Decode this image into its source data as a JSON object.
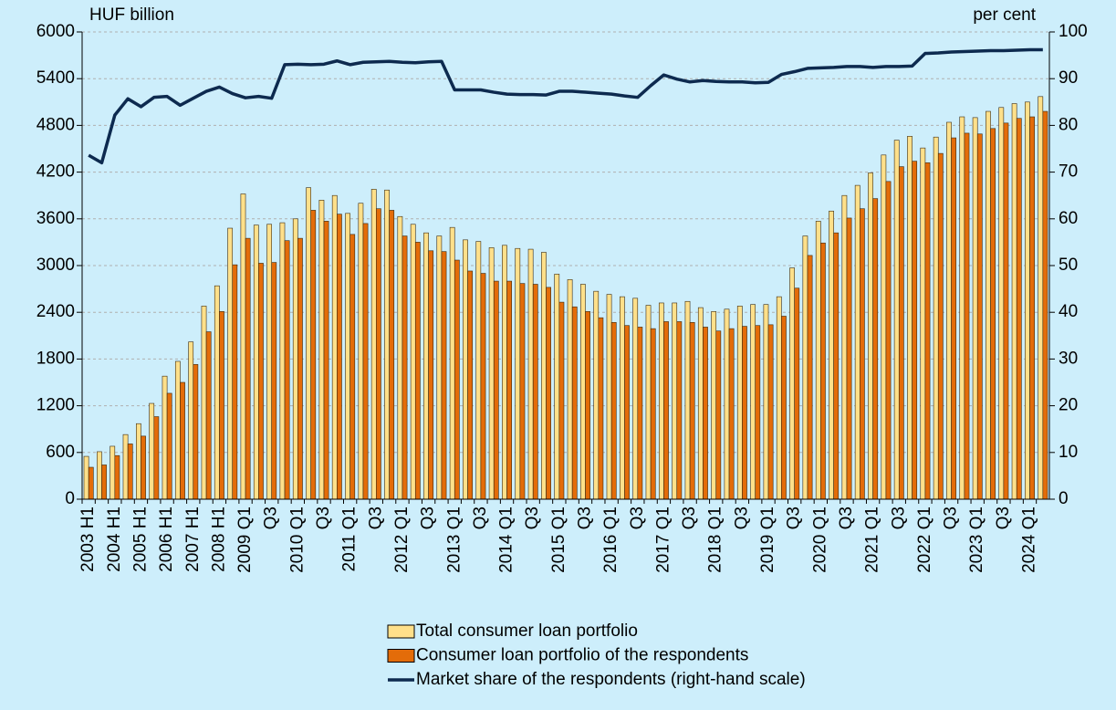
{
  "chart_data": {
    "type": "bar",
    "y_label": "HUF billion",
    "y2_label": "per cent",
    "categories": [
      "2003 H1",
      null,
      "2004 H1",
      null,
      "2005 H1",
      null,
      "2006 H1",
      null,
      "2007 H1",
      null,
      "2008 H1",
      null,
      "2009 Q1",
      null,
      "Q3",
      null,
      "2010 Q1",
      null,
      "Q3",
      null,
      "2011 Q1",
      null,
      "Q3",
      null,
      "2012 Q1",
      null,
      "Q3",
      null,
      "2013 Q1",
      null,
      "Q3",
      null,
      "2014 Q1",
      null,
      "Q3",
      null,
      "2015 Q1",
      null,
      "Q3",
      null,
      "2016 Q1",
      null,
      "Q3",
      null,
      "2017 Q1",
      null,
      "Q3",
      null,
      "2018 Q1",
      null,
      "Q3",
      null,
      "2019 Q1",
      null,
      "Q3",
      null,
      "2020 Q1",
      null,
      "Q3",
      null,
      "2021 Q1",
      null,
      "Q3",
      null,
      "2022 Q1",
      null,
      "Q3",
      null,
      "2023 Q1",
      null,
      "Q3",
      null,
      "2024 Q1",
      null
    ],
    "series": [
      {
        "name": "Total consumer loan portfolio",
        "type": "bar",
        "color": "#ffe08a",
        "values": [
          550,
          610,
          680,
          830,
          970,
          1230,
          1580,
          1770,
          2020,
          2480,
          2740,
          3480,
          3920,
          3520,
          3530,
          3550,
          3600,
          4000,
          3840,
          3900,
          3670,
          3800,
          3980,
          3970,
          3630,
          3530,
          3420,
          3380,
          3490,
          3330,
          3310,
          3230,
          3260,
          3220,
          3210,
          3170,
          2890,
          2820,
          2760,
          2670,
          2630,
          2600,
          2580,
          2490,
          2520,
          2520,
          2540,
          2460,
          2410,
          2440,
          2480,
          2500,
          2500,
          2600,
          2970,
          3380,
          3570,
          3700,
          3900,
          4030,
          4190,
          4420,
          4610,
          4660,
          4510,
          4650,
          4840,
          4910,
          4900,
          4980,
          5030,
          5080,
          5100,
          5170
        ]
      },
      {
        "name": "Consumer loan portfolio of the respondents",
        "type": "bar",
        "color": "#e36c09",
        "values": [
          410,
          440,
          560,
          710,
          810,
          1060,
          1360,
          1500,
          1730,
          2150,
          2410,
          3010,
          3350,
          3030,
          3040,
          3320,
          3350,
          3710,
          3570,
          3660,
          3400,
          3540,
          3730,
          3710,
          3380,
          3300,
          3190,
          3180,
          3070,
          2930,
          2900,
          2800,
          2800,
          2770,
          2760,
          2720,
          2530,
          2470,
          2410,
          2330,
          2270,
          2230,
          2210,
          2190,
          2280,
          2280,
          2270,
          2210,
          2160,
          2190,
          2220,
          2230,
          2240,
          2350,
          2710,
          3130,
          3290,
          3420,
          3610,
          3730,
          3860,
          4080,
          4270,
          4340,
          4320,
          4440,
          4640,
          4700,
          4690,
          4760,
          4830,
          4890,
          4910,
          4980
        ]
      },
      {
        "name": "Market share of the respondents (right-hand scale)",
        "type": "line",
        "axis": "y2",
        "color": "#0d2a4f",
        "values": [
          73.6,
          72,
          82.2,
          85.7,
          84,
          86,
          86.2,
          84.3,
          85.8,
          87.3,
          88.2,
          86.8,
          85.9,
          86.2,
          85.8,
          93,
          93.1,
          93,
          93.1,
          93.8,
          93,
          93.5,
          93.6,
          93.7,
          93.5,
          93.4,
          93.6,
          93.7,
          87.6,
          87.6,
          87.6,
          87.1,
          86.7,
          86.6,
          86.6,
          86.5,
          87.3,
          87.3,
          87.1,
          86.9,
          86.7,
          86.3,
          86,
          88.5,
          90.8,
          89.9,
          89.3,
          89.6,
          89.4,
          89.3,
          89.3,
          89.1,
          89.2,
          90.9,
          91.5,
          92.2,
          92.3,
          92.4,
          92.6,
          92.6,
          92.4,
          92.6,
          92.6,
          92.7,
          95.4,
          95.5,
          95.7,
          95.8,
          95.9,
          96,
          96,
          96.1,
          96.2,
          96.2
        ]
      }
    ],
    "ylim": [
      0,
      6000
    ],
    "yticks": [
      0,
      600,
      1200,
      1800,
      2400,
      3000,
      3600,
      4200,
      4800,
      5400,
      6000
    ],
    "y2lim": [
      0,
      100
    ],
    "y2ticks": [
      0,
      10,
      20,
      30,
      40,
      50,
      60,
      70,
      80,
      90,
      100
    ],
    "grid": true,
    "legend": "bottom"
  }
}
